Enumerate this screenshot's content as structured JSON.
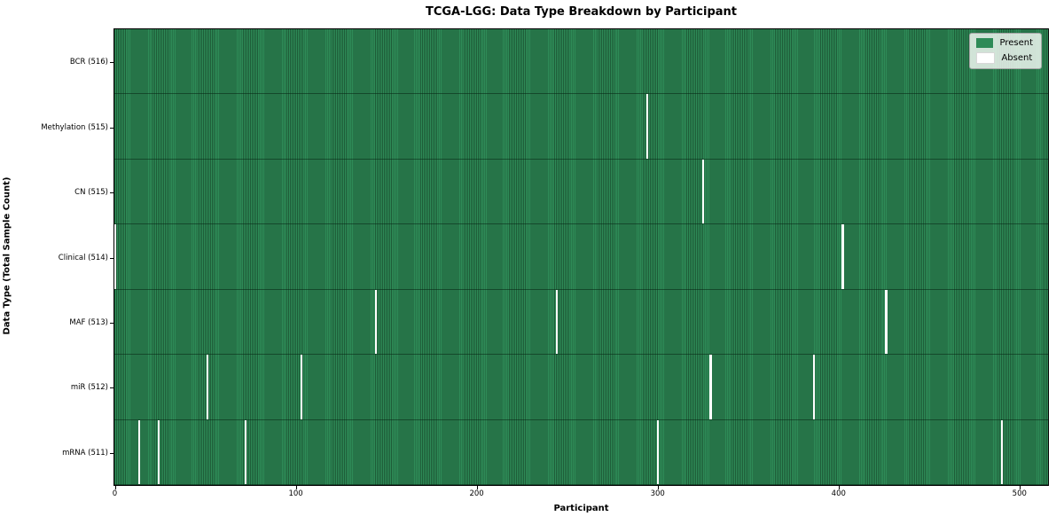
{
  "title": "TCGA-LGG: Data Type Breakdown by Participant",
  "chart_data": {
    "type": "heatmap",
    "title": "TCGA-LGG: Data Type Breakdown by Participant",
    "xlabel": "Participant",
    "ylabel": "Data Type (Total Sample Count)",
    "x_ticks": [
      0,
      100,
      200,
      300,
      400,
      500
    ],
    "x_range": [
      0,
      516
    ],
    "n_participants": 516,
    "n_rows": 7,
    "grid": false,
    "legend": {
      "position": "upper right",
      "entries": [
        {
          "label": "Present",
          "color": "#2e8b57"
        },
        {
          "label": "Absent",
          "color": "#ffffff"
        }
      ]
    },
    "rows": [
      {
        "label": "BCR (516)",
        "data_type": "BCR",
        "present_count": 516,
        "absent_count": 0,
        "absent_participants": []
      },
      {
        "label": "Methylation (515)",
        "data_type": "Methylation",
        "present_count": 515,
        "absent_count": 1,
        "absent_participants": [
          294
        ]
      },
      {
        "label": "CN (515)",
        "data_type": "CN",
        "present_count": 515,
        "absent_count": 1,
        "absent_participants": [
          325
        ]
      },
      {
        "label": "Clinical (514)",
        "data_type": "Clinical",
        "present_count": 514,
        "absent_count": 2,
        "absent_participants": [
          0,
          402
        ]
      },
      {
        "label": "MAF (513)",
        "data_type": "MAF",
        "present_count": 513,
        "absent_count": 3,
        "absent_participants": [
          144,
          244,
          426
        ]
      },
      {
        "label": "miR (512)",
        "data_type": "miR",
        "present_count": 512,
        "absent_count": 4,
        "absent_participants": [
          51,
          103,
          329,
          386
        ]
      },
      {
        "label": "mRNA (511)",
        "data_type": "mRNA",
        "present_count": 511,
        "absent_count": 5,
        "absent_participants": [
          13,
          24,
          72,
          300,
          490
        ]
      }
    ],
    "colors": {
      "present": "#2e8b57",
      "present_stripe_dark": "#1e5c38",
      "absent": "#ffffff",
      "row_divider": "#0a2614",
      "axis": "#000000"
    }
  }
}
